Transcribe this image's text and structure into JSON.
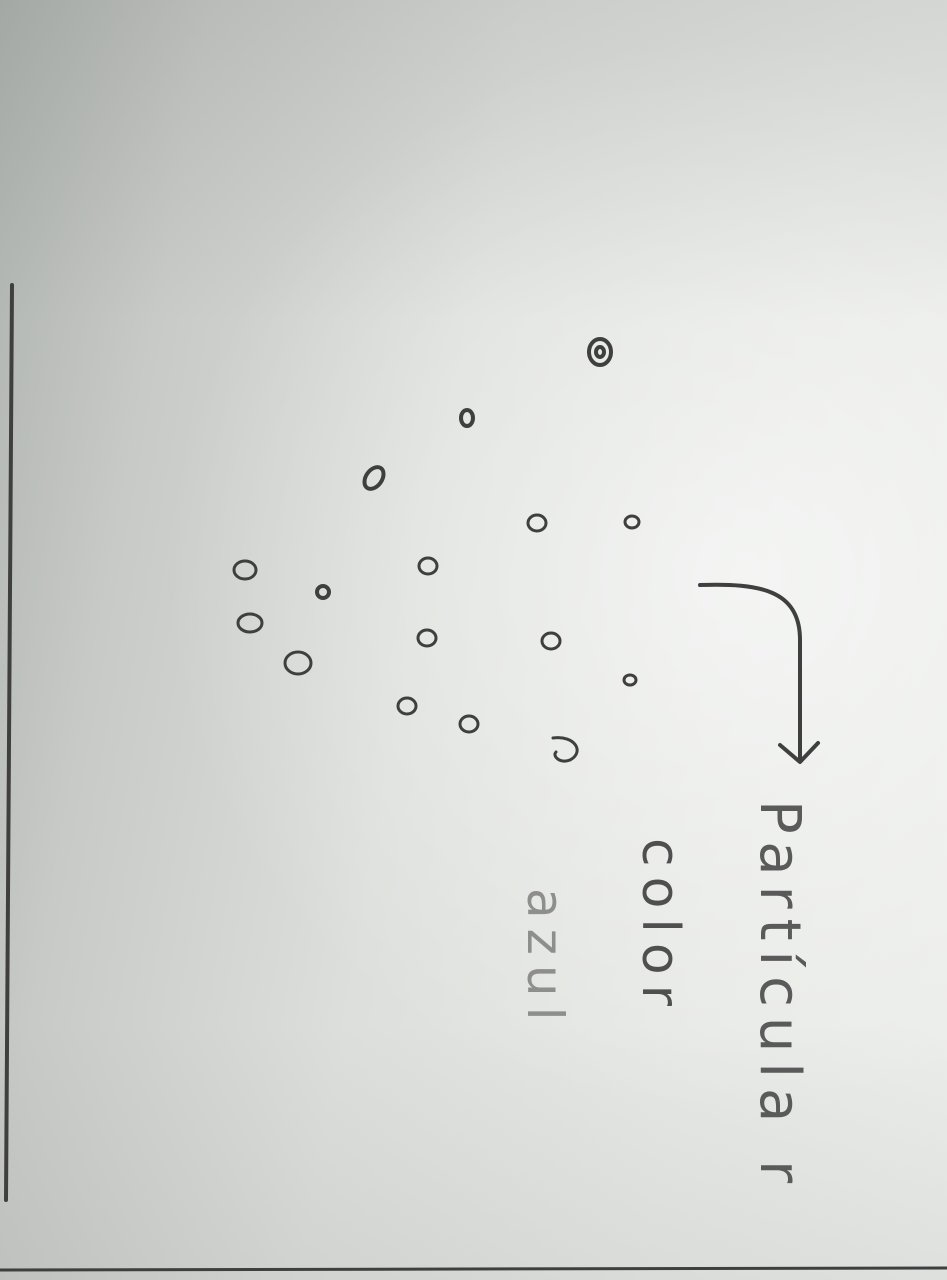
{
  "handwritten_note": {
    "line_1": "Partícula r",
    "line_2": "color",
    "line_3": "azul"
  },
  "colors": {
    "paper": "#e7e9e6",
    "ink": "#3f3f3f",
    "pencil": "#8a8a88"
  }
}
